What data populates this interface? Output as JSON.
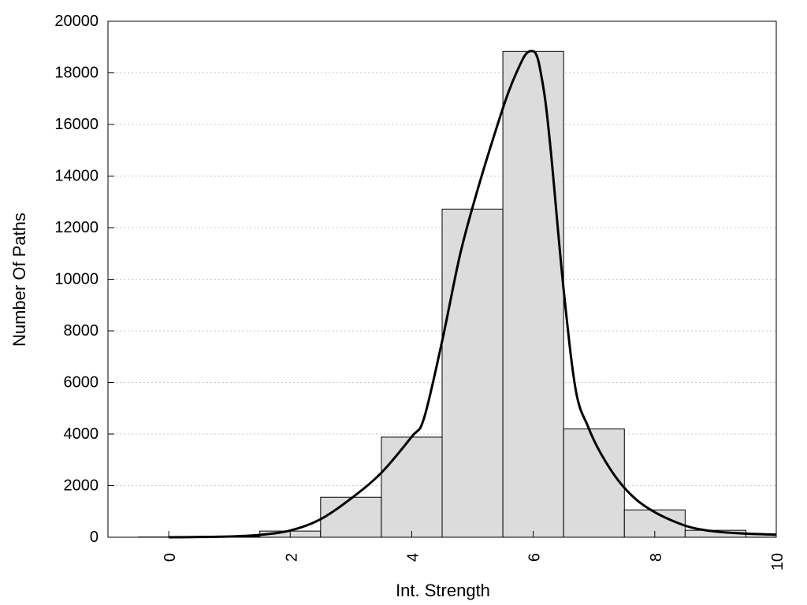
{
  "chart_data": {
    "type": "bar",
    "title": "",
    "xlabel": "Int. Strength",
    "ylabel": "Number Of Paths",
    "xlim": [
      -1,
      10
    ],
    "ylim": [
      0,
      20000
    ],
    "x_ticks": [
      0,
      2,
      4,
      6,
      8,
      10
    ],
    "x_tick_labels": [
      "0",
      "2",
      "4",
      "6",
      "8",
      "10"
    ],
    "y_ticks": [
      0,
      2000,
      4000,
      6000,
      8000,
      10000,
      12000,
      14000,
      16000,
      18000,
      20000
    ],
    "y_tick_labels": [
      "0",
      "2000",
      "4000",
      "6000",
      "8000",
      "10000",
      "12000",
      "14000",
      "16000",
      "18000",
      "20000"
    ],
    "grid": "horizontal dotted",
    "legend": "none",
    "colors": {
      "bar_fill": "#dcdcdc",
      "bar_stroke": "#000000",
      "curve": "#000000",
      "grid": "#c8c8c8"
    },
    "bars": {
      "bin_width": 1,
      "centers": [
        0,
        1,
        2,
        3,
        4,
        5,
        6,
        7,
        8,
        9,
        10
      ],
      "values": [
        10,
        25,
        240,
        1550,
        3880,
        12720,
        18830,
        4200,
        1060,
        270,
        130
      ]
    },
    "curve": {
      "x": [
        0,
        0.5,
        1,
        1.5,
        2,
        2.5,
        3,
        3.5,
        4,
        4.2,
        4.5,
        4.8,
        5.1,
        5.4,
        5.6,
        5.8,
        5.9,
        6.0,
        6.05,
        6.1,
        6.2,
        6.3,
        6.5,
        6.7,
        6.9,
        7.1,
        7.4,
        7.7,
        8.0,
        8.3,
        8.6,
        9,
        9.5,
        10
      ],
      "y": [
        0,
        10,
        30,
        90,
        260,
        700,
        1500,
        2500,
        3900,
        4600,
        7600,
        11000,
        13600,
        15900,
        17300,
        18400,
        18780,
        18840,
        18700,
        18300,
        16900,
        14700,
        9600,
        5700,
        4300,
        3300,
        2200,
        1450,
        970,
        630,
        380,
        220,
        140,
        100
      ]
    }
  }
}
